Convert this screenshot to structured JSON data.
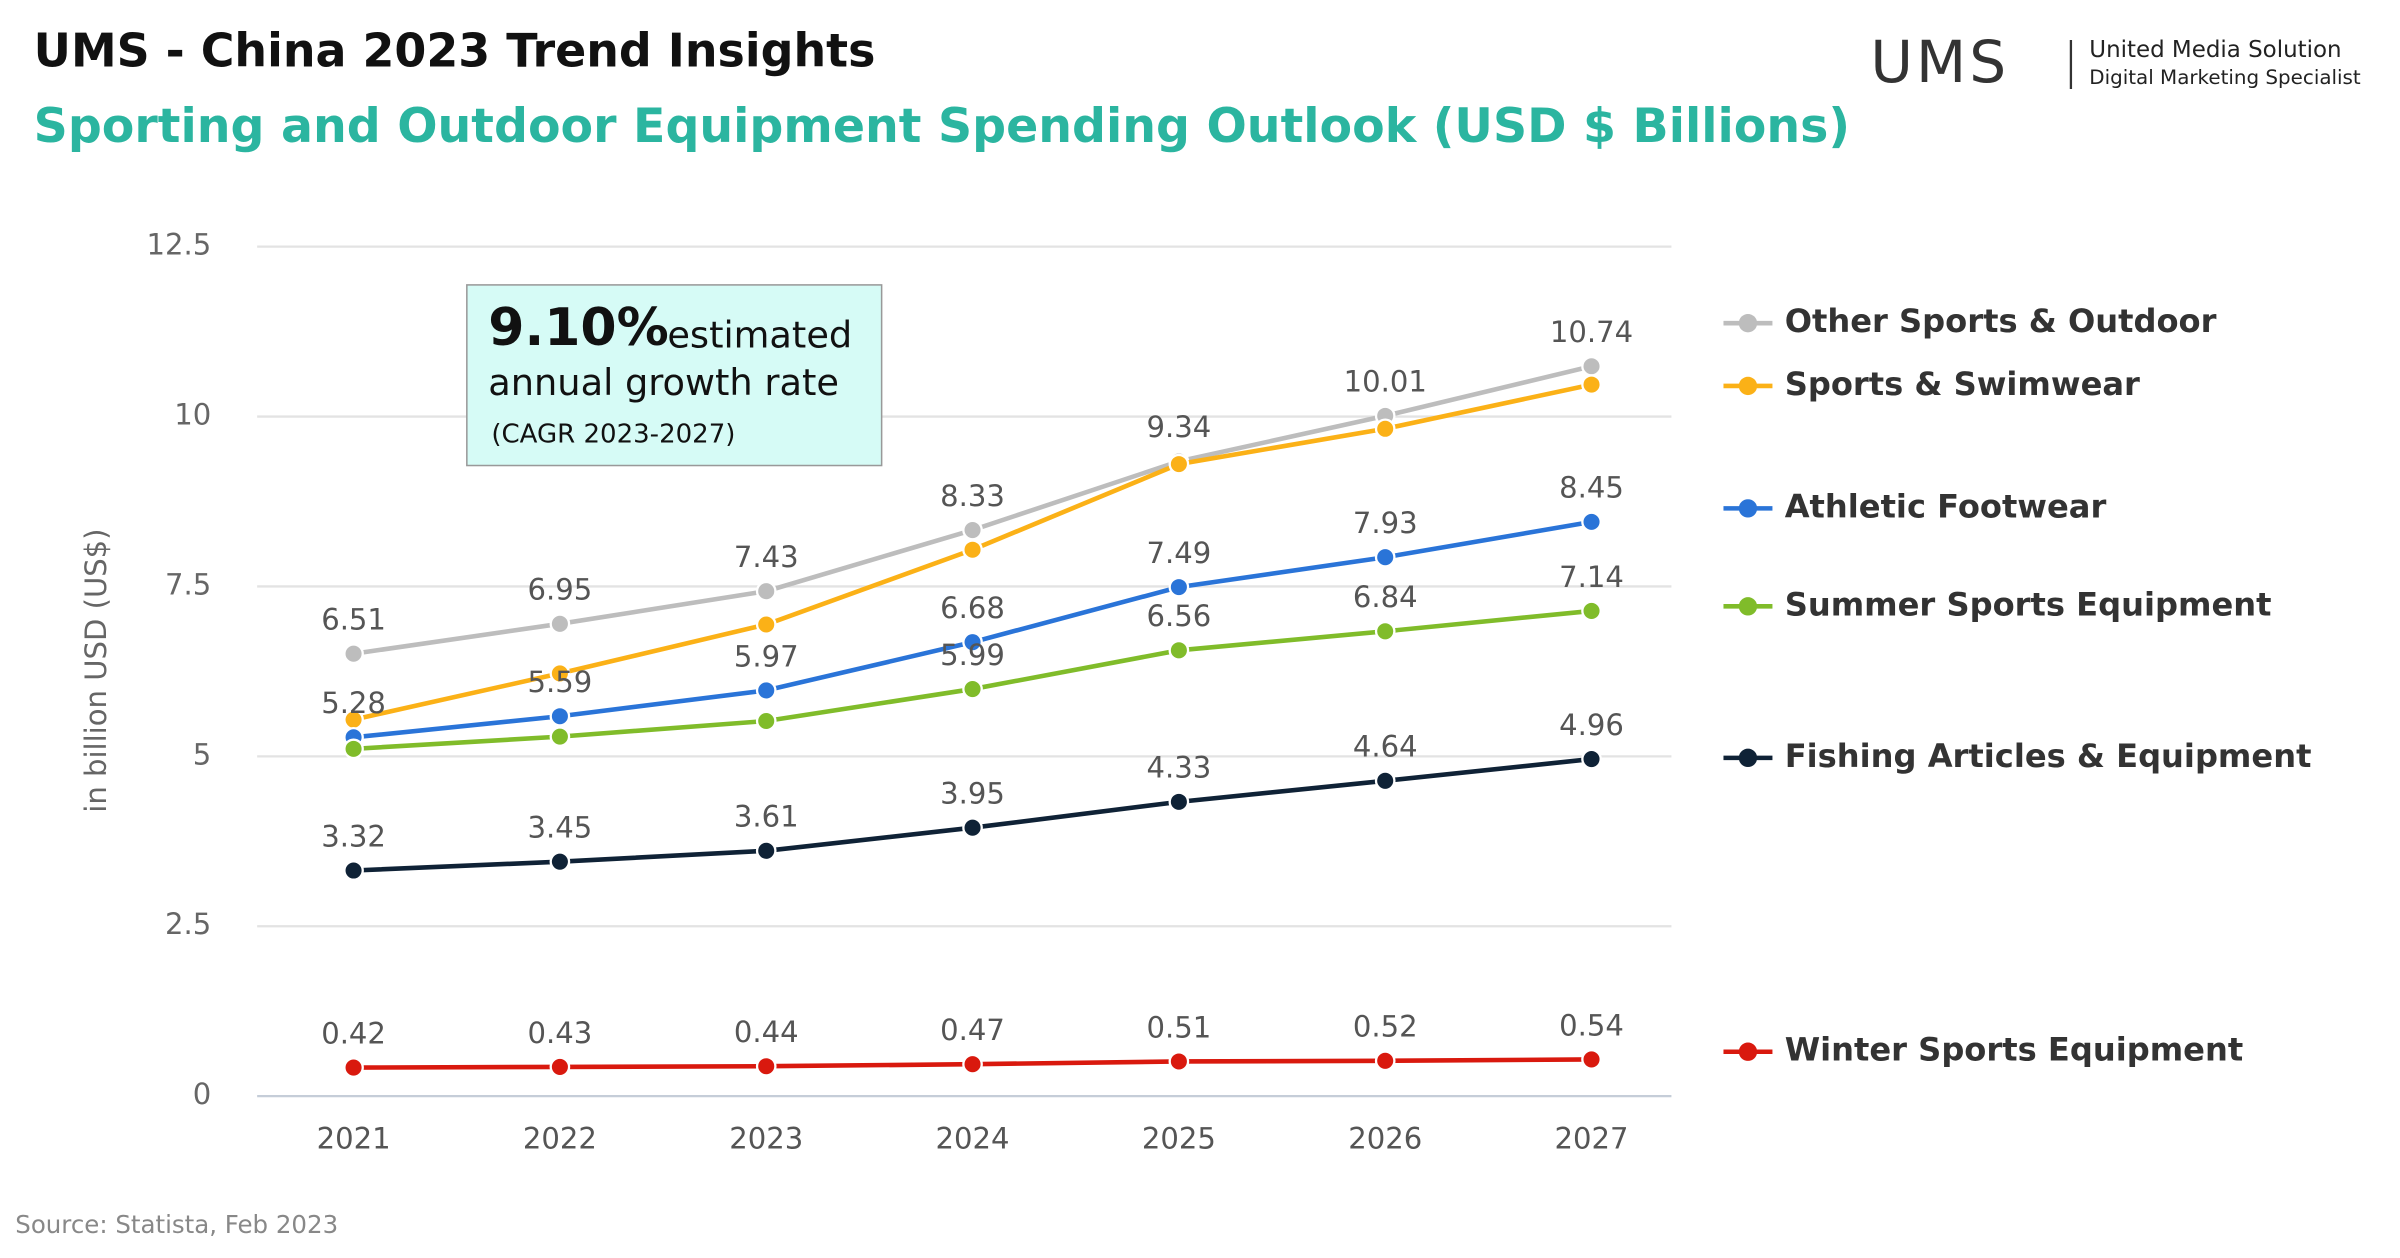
{
  "header": {
    "title": "UMS - China 2023 Trend Insights",
    "logo": "UMS",
    "company": "United Media Solution",
    "tagline": "Digital Marketing Specialist"
  },
  "chart_data": {
    "type": "line",
    "title": "Sporting and Outdoor Equipment Spending Outlook (USD $ Billions)",
    "y_label": "in billion USD (US$)",
    "annotation": {
      "rate": "9.10%",
      "line1": "estimated",
      "line2": "annual growth rate",
      "line3": "(CAGR 2023-2027)"
    },
    "categories": [
      "2021",
      "2022",
      "2023",
      "2024",
      "2025",
      "2026",
      "2027"
    ],
    "ylim": [
      0,
      12.5
    ],
    "yticks": [
      0,
      {
        "value": 2.5,
        "label": "2.5"
      },
      5,
      {
        "value": 7.5,
        "label": "7.5"
      },
      10,
      {
        "value": 12.5,
        "label": "12.5"
      }
    ],
    "grid": true,
    "series": [
      {
        "name": "Other Sports & Outdoor",
        "color": "#bdbdbd",
        "values": [
          6.51,
          6.95,
          7.43,
          8.33,
          9.34,
          10.01,
          10.74
        ],
        "value_labels": [
          "6.51",
          "6.95",
          "7.43",
          "8.33",
          "9.34",
          "10.01",
          "10.74"
        ]
      },
      {
        "name": "Sports & Swimwear",
        "color": "#fbb117",
        "values": [
          5.54,
          6.22,
          6.94,
          8.04,
          9.3,
          9.82,
          10.47
        ],
        "value_labels": [
          null,
          null,
          null,
          null,
          null,
          null,
          null
        ]
      },
      {
        "name": "Athletic Footwear",
        "color": "#2a74d8",
        "values": [
          5.28,
          5.59,
          5.97,
          6.68,
          7.49,
          7.93,
          8.45
        ],
        "value_labels": [
          "5.28",
          "5.59",
          "5.97",
          "6.68",
          "7.49",
          "7.93",
          "8.45"
        ]
      },
      {
        "name": "Summer Sports Equipment",
        "color": "#80bc2a",
        "values": [
          5.11,
          5.29,
          5.52,
          5.99,
          6.56,
          6.84,
          7.14
        ],
        "value_labels": [
          null,
          null,
          null,
          "5.99",
          "6.56",
          "6.84",
          "7.14"
        ]
      },
      {
        "name": "Fishing Articles & Equipment",
        "color": "#0f2236",
        "values": [
          3.32,
          3.45,
          3.61,
          3.95,
          4.33,
          4.64,
          4.96
        ],
        "value_labels": [
          "3.32",
          "3.45",
          "3.61",
          "3.95",
          "4.33",
          "4.64",
          "4.96"
        ]
      },
      {
        "name": "Winter Sports Equipment",
        "color": "#d9190e",
        "values": [
          0.42,
          0.43,
          0.44,
          0.47,
          0.51,
          0.52,
          0.54
        ],
        "value_labels": [
          "0.42",
          "0.43",
          "0.44",
          "0.47",
          "0.51",
          "0.52",
          "0.54"
        ]
      }
    ]
  },
  "footer": {
    "source": "Source: Statista, Feb 2023"
  }
}
